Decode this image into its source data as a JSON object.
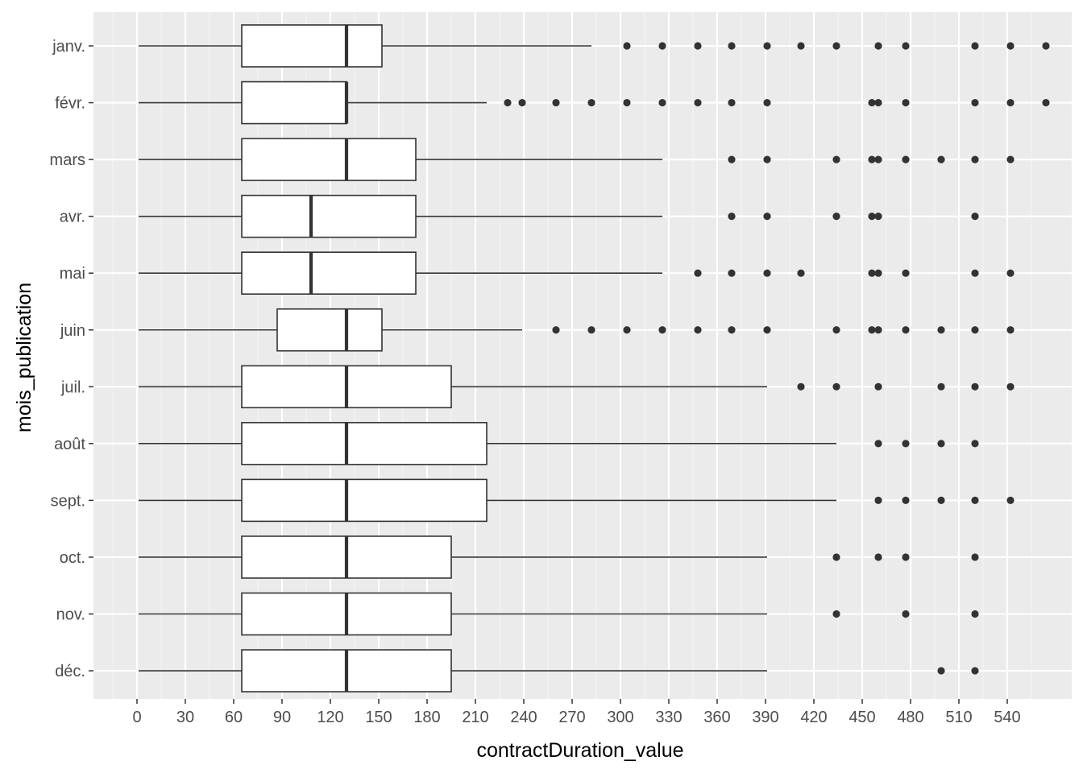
{
  "chart_data": {
    "type": "boxplot",
    "orientation": "horizontal",
    "xlabel": "contractDuration_value",
    "ylabel": "mois_publication",
    "xlim": [
      -15,
      587
    ],
    "x_ticks": [
      0,
      30,
      60,
      90,
      120,
      150,
      180,
      210,
      240,
      270,
      300,
      330,
      360,
      390,
      420,
      450,
      480,
      510,
      540
    ],
    "categories": [
      "janv.",
      "févr.",
      "mars",
      "avr.",
      "mai",
      "juin",
      "juil.",
      "août",
      "sept.",
      "oct.",
      "nov.",
      "déc."
    ],
    "series": [
      {
        "category": "janv.",
        "min": 1,
        "q1": 65,
        "median": 130,
        "q3": 152,
        "max": 282,
        "outliers": [
          304,
          326,
          348,
          369,
          391,
          412,
          434,
          460,
          477,
          520,
          542,
          564
        ]
      },
      {
        "category": "févr.",
        "min": 1,
        "q1": 65,
        "median": 130,
        "q3": 130,
        "max": 217,
        "outliers": [
          230,
          239,
          260,
          282,
          304,
          326,
          348,
          369,
          391,
          456,
          460,
          477,
          520,
          542,
          564
        ]
      },
      {
        "category": "mars",
        "min": 1,
        "q1": 65,
        "median": 130,
        "q3": 173,
        "max": 326,
        "outliers": [
          369,
          391,
          434,
          456,
          460,
          477,
          499,
          520,
          542
        ]
      },
      {
        "category": "avr.",
        "min": 1,
        "q1": 65,
        "median": 108,
        "q3": 173,
        "max": 326,
        "outliers": [
          369,
          391,
          434,
          456,
          460,
          520
        ]
      },
      {
        "category": "mai",
        "min": 1,
        "q1": 65,
        "median": 108,
        "q3": 173,
        "max": 326,
        "outliers": [
          348,
          369,
          391,
          412,
          456,
          460,
          477,
          520,
          542
        ]
      },
      {
        "category": "juin",
        "min": 1,
        "q1": 87,
        "median": 130,
        "q3": 152,
        "max": 239,
        "outliers": [
          260,
          282,
          304,
          326,
          348,
          369,
          391,
          434,
          456,
          460,
          477,
          499,
          520,
          542
        ]
      },
      {
        "category": "juil.",
        "min": 1,
        "q1": 65,
        "median": 130,
        "q3": 195,
        "max": 391,
        "outliers": [
          412,
          434,
          460,
          499,
          520,
          542
        ]
      },
      {
        "category": "août",
        "min": 1,
        "q1": 65,
        "median": 130,
        "q3": 217,
        "max": 434,
        "outliers": [
          460,
          477,
          499,
          520
        ]
      },
      {
        "category": "sept.",
        "min": 1,
        "q1": 65,
        "median": 130,
        "q3": 217,
        "max": 434,
        "outliers": [
          460,
          477,
          499,
          520,
          542
        ]
      },
      {
        "category": "oct.",
        "min": 1,
        "q1": 65,
        "median": 130,
        "q3": 195,
        "max": 391,
        "outliers": [
          434,
          460,
          477,
          520
        ]
      },
      {
        "category": "nov.",
        "min": 1,
        "q1": 65,
        "median": 130,
        "q3": 195,
        "max": 391,
        "outliers": [
          434,
          477,
          520
        ]
      },
      {
        "category": "déc.",
        "min": 1,
        "q1": 65,
        "median": 130,
        "q3": 195,
        "max": 391,
        "outliers": [
          499,
          520
        ]
      }
    ],
    "grid": true,
    "legend": "none",
    "colors": {
      "panel_background": "#EBEBEB",
      "grid_major": "#FFFFFF",
      "grid_minor": "#F5F5F5",
      "box_fill": "#FFFFFF",
      "box_stroke": "#333333",
      "outlier": "#333333",
      "tick_label": "#4D4D4D",
      "axis_title": "#000000"
    }
  }
}
